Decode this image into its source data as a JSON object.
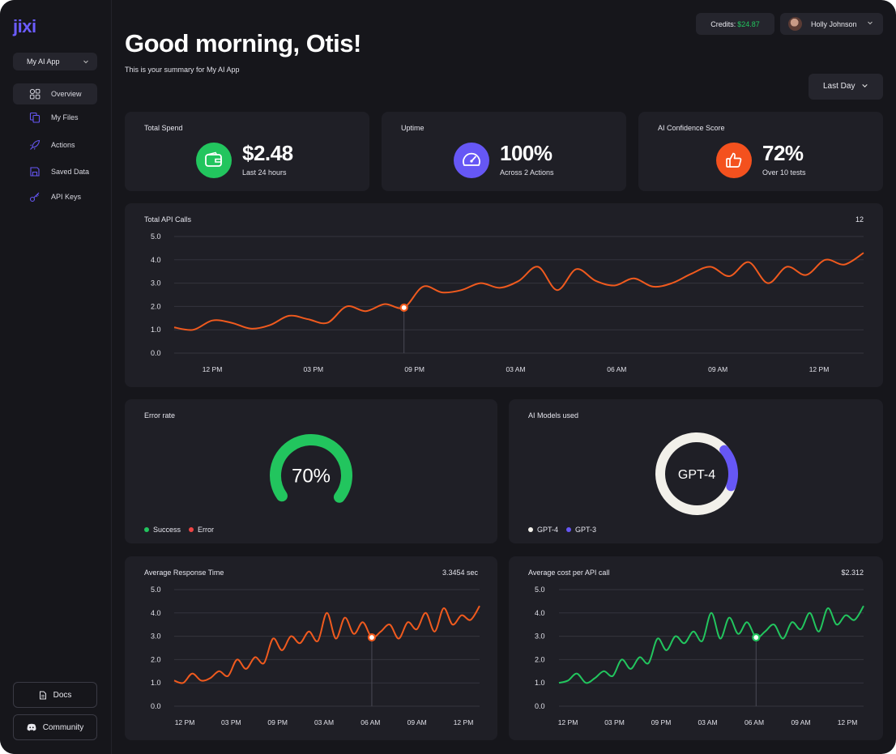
{
  "app": {
    "logo": "jixi"
  },
  "sidebar": {
    "app_selector": "My AI App",
    "items": [
      {
        "label": "Overview",
        "icon": "overview-icon",
        "active": true
      },
      {
        "label": "My Files",
        "icon": "files-icon"
      },
      {
        "label": "Actions",
        "icon": "rocket-icon"
      },
      {
        "label": "Saved Data",
        "icon": "save-icon"
      },
      {
        "label": "API Keys",
        "icon": "key-icon"
      }
    ],
    "docs_label": "Docs",
    "community_label": "Community"
  },
  "header": {
    "greeting": "Good morning, Otis!",
    "subtitle": "This is your summary for My AI App",
    "credits_label": "Credits:",
    "credits_amount": "$24.87",
    "user_name": "Holly Johnson",
    "period": "Last Day"
  },
  "stats": [
    {
      "title": "Total Spend",
      "value": "$2.48",
      "sub": "Last 24 hours",
      "icon": "wallet-icon",
      "color": "#22c55e"
    },
    {
      "title": "Uptime",
      "value": "100%",
      "sub": "Across 2 Actions",
      "icon": "gauge-icon",
      "color": "#6657f5"
    },
    {
      "title": "AI Confidence Score",
      "value": "72%",
      "sub": "Over 10 tests",
      "icon": "thumbs-up-icon",
      "color": "#f4511e"
    }
  ],
  "colors": {
    "orange": "#f05a1e",
    "green": "#22c55e",
    "purple": "#6657f5",
    "white": "#f2f0ea",
    "red": "#ef4444"
  },
  "chart_data": [
    {
      "id": "api_calls",
      "type": "line",
      "title": "Total API Calls",
      "value": "12",
      "ylim": [
        0,
        5
      ],
      "yticks": [
        "0.0",
        "1.0",
        "2.0",
        "3.0",
        "4.0",
        "5.0"
      ],
      "xticks": [
        "12 PM",
        "03 PM",
        "09 PM",
        "03 AM",
        "06 AM",
        "09 AM",
        "12 PM"
      ],
      "highlight_index": 12,
      "y": [
        1.1,
        1.0,
        1.4,
        1.3,
        1.05,
        1.2,
        1.6,
        1.45,
        1.3,
        2.0,
        1.8,
        2.1,
        1.95,
        2.85,
        2.6,
        2.7,
        3.0,
        2.8,
        3.1,
        3.7,
        2.7,
        3.6,
        3.1,
        2.9,
        3.2,
        2.85,
        3.0,
        3.4,
        3.7,
        3.3,
        3.9,
        3.0,
        3.7,
        3.35,
        4.0,
        3.8,
        4.3
      ],
      "color": "#f05a1e"
    },
    {
      "id": "error_rate",
      "type": "pie",
      "title": "Error rate",
      "center_label": "70%",
      "slices": [
        {
          "name": "Success",
          "value": 70,
          "color": "#22c55e"
        },
        {
          "name": "Error",
          "value": 30,
          "color": "#ef4444"
        }
      ]
    },
    {
      "id": "models",
      "type": "pie",
      "title": "AI Models used",
      "center_label": "GPT-4",
      "slices": [
        {
          "name": "GPT-4",
          "value": 83,
          "color": "#f2f0ea"
        },
        {
          "name": "GPT-3",
          "value": 17,
          "color": "#6657f5"
        }
      ]
    },
    {
      "id": "response_time",
      "type": "line",
      "title": "Average Response Time",
      "value": "3.3454 sec",
      "ylim": [
        0,
        5
      ],
      "yticks": [
        "0.0",
        "1.0",
        "2.0",
        "3.0",
        "4.0",
        "5.0"
      ],
      "xticks": [
        "12 PM",
        "03 PM",
        "09 PM",
        "03 AM",
        "06 AM",
        "09 AM",
        "12 PM"
      ],
      "highlight_index": 22,
      "y": [
        1.1,
        1.0,
        1.4,
        1.1,
        1.2,
        1.5,
        1.3,
        2.0,
        1.6,
        2.1,
        1.85,
        2.9,
        2.4,
        3.0,
        2.7,
        3.2,
        2.8,
        4.0,
        2.9,
        3.8,
        3.1,
        3.6,
        2.95,
        3.2,
        3.5,
        2.9,
        3.6,
        3.3,
        4.0,
        3.2,
        4.2,
        3.5,
        3.9,
        3.7,
        4.3
      ],
      "color": "#f05a1e"
    },
    {
      "id": "cost_per_call",
      "type": "line",
      "title": "Average cost per API call",
      "value": "$2.312",
      "ylim": [
        0,
        5
      ],
      "yticks": [
        "0.0",
        "1.0",
        "2.0",
        "3.0",
        "4.0",
        "5.0"
      ],
      "xticks": [
        "12 PM",
        "03 PM",
        "09 PM",
        "03 AM",
        "06 AM",
        "09 AM",
        "12 PM"
      ],
      "highlight_index": 22,
      "y": [
        1.0,
        1.1,
        1.4,
        1.0,
        1.2,
        1.5,
        1.3,
        2.0,
        1.6,
        2.1,
        1.85,
        2.9,
        2.4,
        3.0,
        2.7,
        3.2,
        2.8,
        4.0,
        2.9,
        3.8,
        3.1,
        3.6,
        2.95,
        3.2,
        3.5,
        2.9,
        3.6,
        3.3,
        4.0,
        3.2,
        4.2,
        3.5,
        3.9,
        3.7,
        4.3
      ],
      "color": "#22c55e"
    }
  ]
}
